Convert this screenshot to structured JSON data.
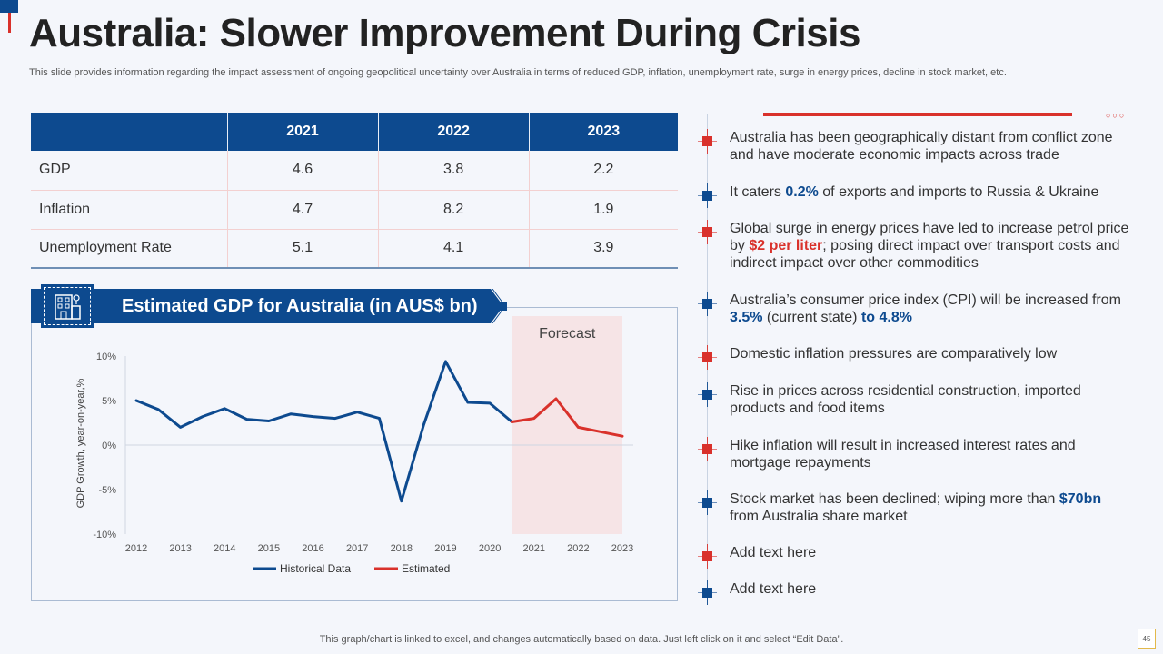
{
  "slide": {
    "title": "Australia: Slower Improvement During Crisis",
    "subtitle": "This slide provides information regarding the impact assessment of ongoing geopolitical uncertainty over Australia in terms of reduced GDP, inflation, unemployment rate, surge in energy prices, decline in stock market, etc.",
    "footer": "This graph/chart is linked to excel,  and changes automatically based on data. Just left click on it and select “Edit Data”.",
    "page_number": "45"
  },
  "table": {
    "headers": [
      "",
      "2021",
      "2022",
      "2023"
    ],
    "rows": [
      {
        "label": "GDP",
        "values": [
          "4.6",
          "3.8",
          "2.2"
        ]
      },
      {
        "label": "Inflation",
        "values": [
          "4.7",
          "8.2",
          "1.9"
        ]
      },
      {
        "label": "Unemployment  Rate",
        "values": [
          "5.1",
          "4.1",
          "3.9"
        ]
      }
    ]
  },
  "chart_banner": {
    "title": "Estimated GDP for Australia (in AUS$ bn)",
    "icon": "building-icon"
  },
  "chart_data": {
    "type": "line",
    "title": "Estimated GDP for Australia (in AUS$ bn)",
    "xlabel": "",
    "ylabel": "GDP  Growth,  year-on-year,%",
    "ylim": [
      -10,
      10
    ],
    "yticks": [
      10,
      5,
      0,
      -5,
      -10
    ],
    "ytick_labels": [
      "10%",
      "5%",
      "0%",
      "-5%",
      "-10%"
    ],
    "xlim": [
      2012,
      2023
    ],
    "xticks": [
      "2012",
      "2013",
      "2014",
      "2015",
      "2016",
      "2017",
      "2018",
      "2019",
      "2020",
      "2021",
      "2022",
      "2023"
    ],
    "forecast_region": {
      "label": "Forecast",
      "from": 2020.5,
      "to": 2023
    },
    "legend": "bottom-center",
    "series": [
      {
        "name": "Historical Data",
        "color": "#0d4a8f",
        "points": [
          [
            2012,
            5.0
          ],
          [
            2012.5,
            4.0
          ],
          [
            2013,
            2.0
          ],
          [
            2013.5,
            3.2
          ],
          [
            2014,
            4.1
          ],
          [
            2014.5,
            2.9
          ],
          [
            2015,
            2.7
          ],
          [
            2015.5,
            3.5
          ],
          [
            2016,
            3.2
          ],
          [
            2016.5,
            3.0
          ],
          [
            2017,
            3.7
          ],
          [
            2017.5,
            3.0
          ],
          [
            2018,
            -6.3
          ],
          [
            2018.5,
            2.2
          ],
          [
            2019,
            9.4
          ],
          [
            2019.5,
            4.8
          ],
          [
            2020,
            4.7
          ],
          [
            2020.5,
            2.6
          ]
        ]
      },
      {
        "name": "Estimated",
        "color": "#d9312b",
        "points": [
          [
            2020.5,
            2.6
          ],
          [
            2021,
            3.0
          ],
          [
            2021.5,
            5.2
          ],
          [
            2022,
            2.0
          ],
          [
            2022.5,
            1.5
          ],
          [
            2023,
            1.0
          ]
        ]
      }
    ]
  },
  "bullets": [
    {
      "color": "red",
      "parts": [
        {
          "t": "Australia has been geographically distant from conflict zone and have moderate economic impacts across trade"
        }
      ]
    },
    {
      "color": "blue",
      "parts": [
        {
          "t": "It caters "
        },
        {
          "t": "0.2%",
          "s": "blue"
        },
        {
          "t": " of exports and imports to Russia & Ukraine"
        }
      ]
    },
    {
      "color": "red",
      "parts": [
        {
          "t": "Global surge in energy prices have led to increase petrol price by "
        },
        {
          "t": "$2 per liter",
          "s": "red"
        },
        {
          "t": "; posing direct impact over transport costs and indirect impact over other commodities"
        }
      ]
    },
    {
      "color": "blue",
      "parts": [
        {
          "t": "Australia’s consumer price index (CPI) will be increased from "
        },
        {
          "t": "3.5%",
          "s": "blue"
        },
        {
          "t": " (current  state) "
        },
        {
          "t": "to 4.8%",
          "s": "blue"
        }
      ]
    },
    {
      "color": "red",
      "parts": [
        {
          "t": "Domestic inflation pressures are comparatively low"
        }
      ]
    },
    {
      "color": "blue",
      "parts": [
        {
          "t": "Rise in prices across residential construction,  imported products and food items"
        }
      ]
    },
    {
      "color": "red",
      "parts": [
        {
          "t": "Hike inflation will result  in increased interest rates and mortgage repayments"
        }
      ]
    },
    {
      "color": "blue",
      "parts": [
        {
          "t": "Stock market has been declined; wiping more than "
        },
        {
          "t": "$70bn",
          "s": "blue"
        },
        {
          "t": " from Australia share market"
        }
      ]
    },
    {
      "color": "red",
      "parts": [
        {
          "t": "Add text here"
        }
      ]
    },
    {
      "color": "blue",
      "parts": [
        {
          "t": "Add text here"
        }
      ]
    }
  ],
  "colors": {
    "accent_blue": "#0d4a8f",
    "accent_red": "#d9312b",
    "forecast_fill": "#f6e4e6"
  }
}
